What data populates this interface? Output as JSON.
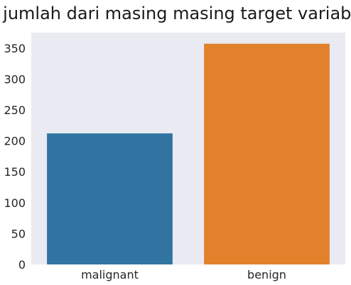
{
  "chart_data": {
    "type": "bar",
    "title": "jumlah dari masing masing target variable",
    "xlabel": "",
    "ylabel": "",
    "categories": [
      "malignant",
      "benign"
    ],
    "values": [
      212,
      357
    ],
    "ylim": [
      0,
      375
    ],
    "yticks": [
      0,
      50,
      100,
      150,
      200,
      250,
      300,
      350
    ],
    "grid": false,
    "legend": "none",
    "colors": [
      "#3274a1",
      "#e1812c"
    ],
    "background": "#eaeaf2"
  }
}
